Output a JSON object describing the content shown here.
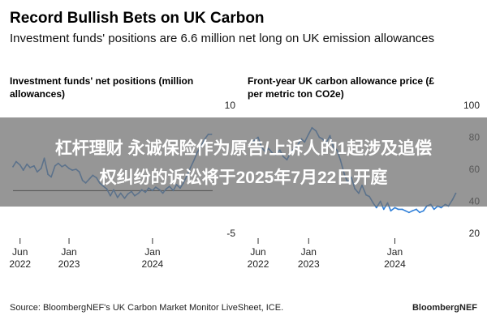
{
  "header": {
    "title": "Record Bullish Bets on UK Carbon",
    "subtitle": "Investment funds' positions are 6.6 million net long on UK emission allowances"
  },
  "banner": {
    "line1": "杠杆理财 永诚保险作为原告/上诉人的1起涉及追偿",
    "line2": "权纠纷的诉讼将于2025年7月22日开庭"
  },
  "footer": {
    "source": "Source: BloombergNEF's UK Carbon Market Monitor LiveSheet, ICE.",
    "brand": "BloombergNEF"
  },
  "colors": {
    "line": "#2f7fd8",
    "zero_line": "#000000",
    "banner": "#6e6e6e"
  },
  "chart_data": [
    {
      "type": "line",
      "title": "Investment funds' net positions (million allowances)",
      "y_axis_side": "right",
      "xlim": [
        "2022-05-01",
        "2024-09-20"
      ],
      "ylim": [
        -5,
        10
      ],
      "yticks": [
        10,
        -5
      ],
      "reference_line": 0,
      "x_ticks": [
        {
          "date": "2022-06-01",
          "label": [
            "Jun",
            "2022"
          ]
        },
        {
          "date": "2023-01-01",
          "label": [
            "Jan",
            "2023"
          ]
        },
        {
          "date": "2024-01-01",
          "label": [
            "Jan",
            "2024"
          ]
        }
      ],
      "series": [
        {
          "x": [
            "2022-05-01",
            "2022-05-15",
            "2022-06-01",
            "2022-06-15",
            "2022-07-01",
            "2022-07-15",
            "2022-08-01",
            "2022-08-15",
            "2022-09-01",
            "2022-09-15",
            "2022-10-01",
            "2022-10-15",
            "2022-11-01",
            "2022-11-15",
            "2022-12-01",
            "2022-12-15",
            "2023-01-01",
            "2023-01-15",
            "2023-02-01",
            "2023-02-15",
            "2023-03-01",
            "2023-03-15",
            "2023-04-01",
            "2023-04-15",
            "2023-05-01",
            "2023-05-15",
            "2023-06-01",
            "2023-06-15",
            "2023-07-01",
            "2023-07-15",
            "2023-08-01",
            "2023-08-15",
            "2023-09-01",
            "2023-09-15",
            "2023-10-01",
            "2023-10-15",
            "2023-11-01",
            "2023-11-15",
            "2023-12-01",
            "2023-12-15",
            "2024-01-01",
            "2024-01-15",
            "2024-02-01",
            "2024-02-15",
            "2024-03-01",
            "2024-03-15",
            "2024-04-01",
            "2024-04-15",
            "2024-05-01",
            "2024-05-15",
            "2024-06-01",
            "2024-06-15",
            "2024-07-01",
            "2024-07-15",
            "2024-08-01",
            "2024-08-15",
            "2024-09-01",
            "2024-09-15"
          ],
          "y": [
            2.8,
            3.4,
            3.0,
            2.4,
            3.1,
            2.7,
            2.9,
            2.2,
            2.6,
            3.8,
            1.9,
            1.6,
            2.9,
            3.2,
            2.8,
            3.0,
            2.6,
            2.4,
            2.5,
            2.2,
            1.2,
            0.9,
            1.4,
            1.8,
            1.5,
            0.9,
            0.5,
            0.2,
            -0.6,
            0.1,
            -0.8,
            -0.3,
            -0.9,
            -0.4,
            -0.1,
            -0.6,
            -0.3,
            0.1,
            -0.2,
            0.3,
            0.0,
            0.4,
            0.1,
            -0.3,
            0.2,
            0.5,
            0.0,
            0.7,
            0.3,
            0.9,
            1.8,
            2.7,
            3.6,
            4.5,
            5.2,
            6.0,
            6.6,
            6.6
          ]
        }
      ]
    },
    {
      "type": "line",
      "title": "Front-year UK carbon allowance price (£ per metric ton CO2e)",
      "y_axis_side": "right",
      "xlim": [
        "2022-05-01",
        "2024-09-20"
      ],
      "ylim": [
        20,
        100
      ],
      "yticks": [
        100,
        80,
        60,
        40,
        20
      ],
      "x_ticks": [
        {
          "date": "2022-06-01",
          "label": [
            "Jun",
            "2022"
          ]
        },
        {
          "date": "2023-01-01",
          "label": [
            "Jan",
            "2023"
          ]
        },
        {
          "date": "2024-01-01",
          "label": [
            "Jan",
            "2024"
          ]
        }
      ],
      "series": [
        {
          "x": [
            "2022-05-01",
            "2022-05-15",
            "2022-06-01",
            "2022-06-15",
            "2022-07-01",
            "2022-07-15",
            "2022-08-01",
            "2022-08-15",
            "2022-09-01",
            "2022-09-15",
            "2022-10-01",
            "2022-10-15",
            "2022-11-01",
            "2022-11-15",
            "2022-12-01",
            "2022-12-15",
            "2023-01-01",
            "2023-01-15",
            "2023-02-01",
            "2023-02-15",
            "2023-03-01",
            "2023-03-15",
            "2023-04-01",
            "2023-04-15",
            "2023-05-01",
            "2023-05-15",
            "2023-06-01",
            "2023-06-15",
            "2023-07-01",
            "2023-07-15",
            "2023-08-01",
            "2023-08-15",
            "2023-09-01",
            "2023-09-15",
            "2023-10-01",
            "2023-10-15",
            "2023-11-01",
            "2023-11-15",
            "2023-12-01",
            "2023-12-15",
            "2024-01-01",
            "2024-01-15",
            "2024-02-01",
            "2024-02-15",
            "2024-03-01",
            "2024-03-15",
            "2024-04-01",
            "2024-04-15",
            "2024-05-01",
            "2024-05-15",
            "2024-06-01",
            "2024-06-15",
            "2024-07-01",
            "2024-07-15",
            "2024-08-01",
            "2024-08-15",
            "2024-09-01",
            "2024-09-15"
          ],
          "y": [
            76,
            78,
            80,
            74,
            71,
            73,
            70,
            69,
            72,
            68,
            66,
            70,
            73,
            75,
            79,
            77,
            82,
            86,
            84,
            80,
            79,
            76,
            81,
            74,
            72,
            66,
            57,
            52,
            55,
            48,
            45,
            50,
            44,
            43,
            39,
            36,
            40,
            35,
            39,
            34,
            36,
            35,
            35,
            34,
            33,
            34,
            35,
            33,
            34,
            37,
            38,
            35,
            37,
            36,
            38,
            37,
            41,
            45
          ]
        }
      ]
    }
  ],
  "chart_titles": [
    "Investment funds' net positions (million allowances)",
    "Front-year UK carbon allowance price (£ per metric ton CO2e)"
  ]
}
